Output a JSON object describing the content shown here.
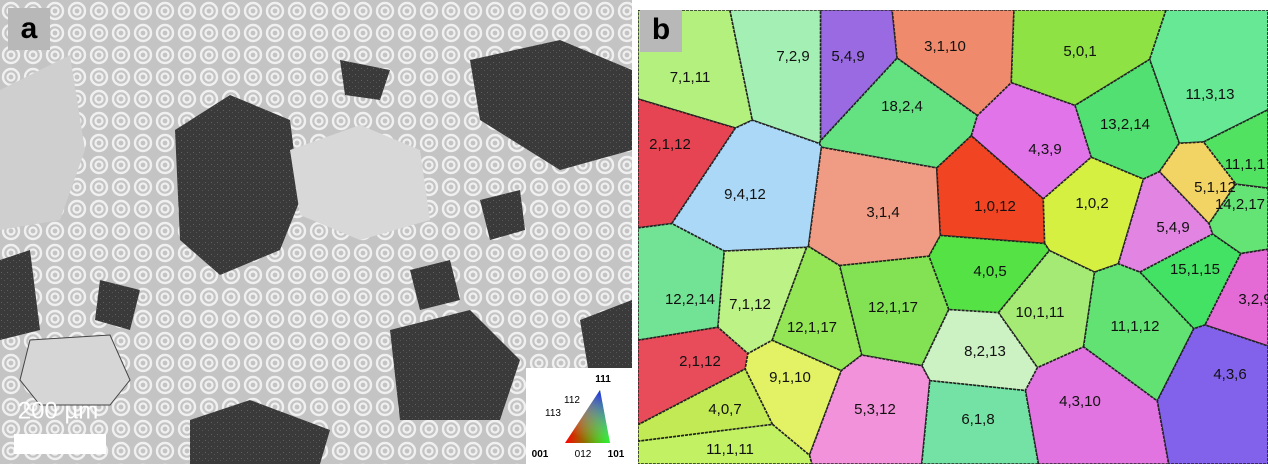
{
  "panels": [
    {
      "label": "a",
      "scale_bar": "200 µm",
      "legend": {
        "corners": [
          "111",
          "001",
          "101"
        ],
        "edges": [
          "112",
          "113",
          "012"
        ]
      }
    },
    {
      "label": "b",
      "grains": [
        {
          "label": "5,4,9",
          "color": "#9a6ae2"
        },
        {
          "label": "3,1,10",
          "color": "#f08a6c"
        },
        {
          "label": "5,0,1",
          "color": "#8ee244"
        },
        {
          "label": "7,2,9",
          "color": "#a4f0b4"
        },
        {
          "label": "7,1,11",
          "color": "#b4f07e"
        },
        {
          "label": "18,2,4",
          "color": "#64e282"
        },
        {
          "label": "11,3,13",
          "color": "#66e894"
        },
        {
          "label": "2,1,12",
          "color": "#e64452"
        },
        {
          "label": "13,2,14",
          "color": "#52e072"
        },
        {
          "label": "4,3,9",
          "color": "#e274ea"
        },
        {
          "label": "11,1,1",
          "color": "#52e262"
        },
        {
          "label": "9,4,12",
          "color": "#aad8f6"
        },
        {
          "label": "3,1,4",
          "color": "#f09c84"
        },
        {
          "label": "1,0,12",
          "color": "#f04422"
        },
        {
          "label": "1,0,2",
          "color": "#d6f042"
        },
        {
          "label": "5,1,12",
          "color": "#f2d464"
        },
        {
          "label": "14,2,17",
          "color": "#64e474"
        },
        {
          "label": "5,4,9",
          "color": "#e284e2"
        },
        {
          "label": "4,0,5",
          "color": "#54e244"
        },
        {
          "label": "15,1,15",
          "color": "#44e264"
        },
        {
          "label": "12,2,14",
          "color": "#72e294"
        },
        {
          "label": "7,1,12",
          "color": "#bcf286"
        },
        {
          "label": "12,1,17",
          "color": "#82e254"
        },
        {
          "label": "12,1,17",
          "color": "#94e656"
        },
        {
          "label": "10,1,11",
          "color": "#a4ea74"
        },
        {
          "label": "3,2,9",
          "color": "#e46ad6"
        },
        {
          "label": "11,1,12",
          "color": "#62e272"
        },
        {
          "label": "8,2,13",
          "color": "#ccf2c4"
        },
        {
          "label": "2,1,12",
          "color": "#e84c5a"
        },
        {
          "label": "9,1,10",
          "color": "#e2f264"
        },
        {
          "label": "4,3,6",
          "color": "#8262ea"
        },
        {
          "label": "4,0,7",
          "color": "#c2ea54"
        },
        {
          "label": "5,3,12",
          "color": "#f292da"
        },
        {
          "label": "4,3,10",
          "color": "#e274e2"
        },
        {
          "label": "6,1,8",
          "color": "#74e2a4"
        },
        {
          "label": "11,1,11",
          "color": "#c2f264"
        }
      ]
    }
  ]
}
